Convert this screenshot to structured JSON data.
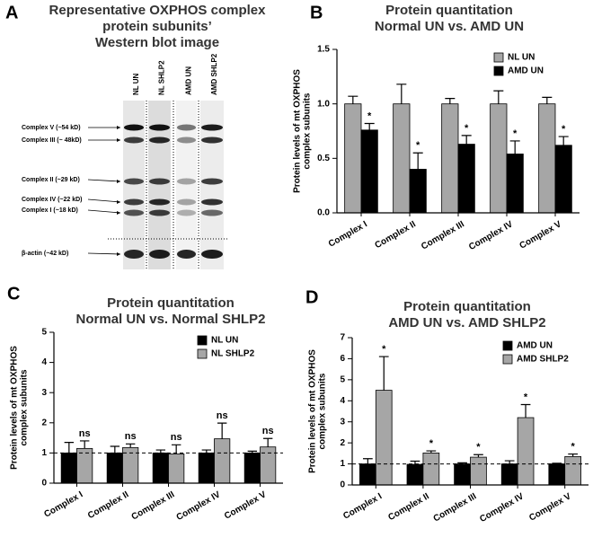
{
  "blot": {
    "label": "A",
    "title": [
      "Representative OXPHOS complex",
      "protein subunits’",
      "Western blot image"
    ],
    "lanes": [
      "NL UN",
      "NL SHLP2",
      "AMD UN",
      "AMD SHLP2"
    ],
    "bands": [
      "Complex V (~54 kD)",
      "Complex III (~ 48kD)",
      "Complex II (~29 kD)",
      "Complex IV (~22 kD)",
      "Complex I  (~18 kD)",
      "β-actin  (~42 kD)"
    ]
  },
  "chart_data": [
    {
      "type": "bar",
      "label": "B",
      "title": [
        "Protein quantitation",
        "Normal UN vs. AMD UN"
      ],
      "ylabel": [
        "Protein levels of mt OXPHOS",
        "complex subunits"
      ],
      "categories": [
        "Complex I",
        "Complex II",
        "Complex III",
        "Complex IV",
        "Complex V"
      ],
      "series": [
        {
          "name": "NL UN",
          "color": "#a6a6a6",
          "values": [
            1.0,
            1.0,
            1.0,
            1.0,
            1.0
          ],
          "errors": [
            0.07,
            0.18,
            0.05,
            0.12,
            0.06
          ]
        },
        {
          "name": "AMD UN",
          "color": "#000000",
          "values": [
            0.76,
            0.4,
            0.63,
            0.54,
            0.62
          ],
          "errors": [
            0.06,
            0.15,
            0.08,
            0.12,
            0.08
          ]
        }
      ],
      "significance": [
        "*",
        "*",
        "*",
        "*",
        "*"
      ],
      "ylim": [
        0,
        1.5
      ],
      "yticks": [
        {
          "value": 0,
          "label": "0.0"
        },
        {
          "value": 0.5,
          "label": "0.5"
        },
        {
          "value": 1,
          "label": "1.0"
        },
        {
          "value": 1.5,
          "label": "1.5"
        }
      ],
      "legend": "upper right"
    },
    {
      "type": "bar",
      "label": "C",
      "title": [
        "Protein quantitation",
        "Normal UN vs. Normal SHLP2"
      ],
      "ylabel": [
        "Protein levels of mt OXPHOS",
        "complex subunits"
      ],
      "categories": [
        "Complex I",
        "Complex II",
        "Complex III",
        "Complex IV",
        "Complex V"
      ],
      "series": [
        {
          "name": "NL UN",
          "color": "#000000",
          "values": [
            1.0,
            1.0,
            1.0,
            1.0,
            1.0
          ],
          "errors": [
            0.35,
            0.22,
            0.1,
            0.1,
            0.06
          ]
        },
        {
          "name": "NL SHLP2",
          "color": "#a6a6a6",
          "values": [
            1.15,
            1.18,
            0.97,
            1.47,
            1.2
          ],
          "errors": [
            0.25,
            0.12,
            0.3,
            0.52,
            0.28
          ]
        }
      ],
      "significance": [
        "ns",
        "ns",
        "ns",
        "ns",
        "ns"
      ],
      "reference_line": 1,
      "ylim": [
        0,
        5
      ],
      "yticks": [
        0,
        1,
        2,
        3,
        4,
        5
      ],
      "legend": "upper right"
    },
    {
      "type": "bar",
      "label": "D",
      "title": [
        "Protein quantitation",
        "AMD UN vs. AMD SHLP2"
      ],
      "ylabel": [
        "Protein levels of mt OXPHOS",
        "complex subunits"
      ],
      "categories": [
        "Complex I",
        "Complex II",
        "Complex III",
        "Complex IV",
        "Complex V"
      ],
      "series": [
        {
          "name": "AMD UN",
          "color": "#000000",
          "values": [
            1.0,
            0.98,
            1.0,
            1.0,
            1.0
          ],
          "errors": [
            0.25,
            0.15,
            0.05,
            0.15,
            0.03
          ]
        },
        {
          "name": "AMD SHLP2",
          "color": "#a6a6a6",
          "values": [
            4.5,
            1.52,
            1.32,
            3.2,
            1.35
          ],
          "errors": [
            1.6,
            0.1,
            0.12,
            0.62,
            0.12
          ]
        }
      ],
      "significance": [
        "*",
        "*",
        "*",
        "*",
        "*"
      ],
      "reference_line": 1,
      "ylim": [
        0,
        7
      ],
      "yticks": [
        0,
        1,
        2,
        3,
        4,
        5,
        6,
        7
      ],
      "legend": "upper right"
    }
  ]
}
